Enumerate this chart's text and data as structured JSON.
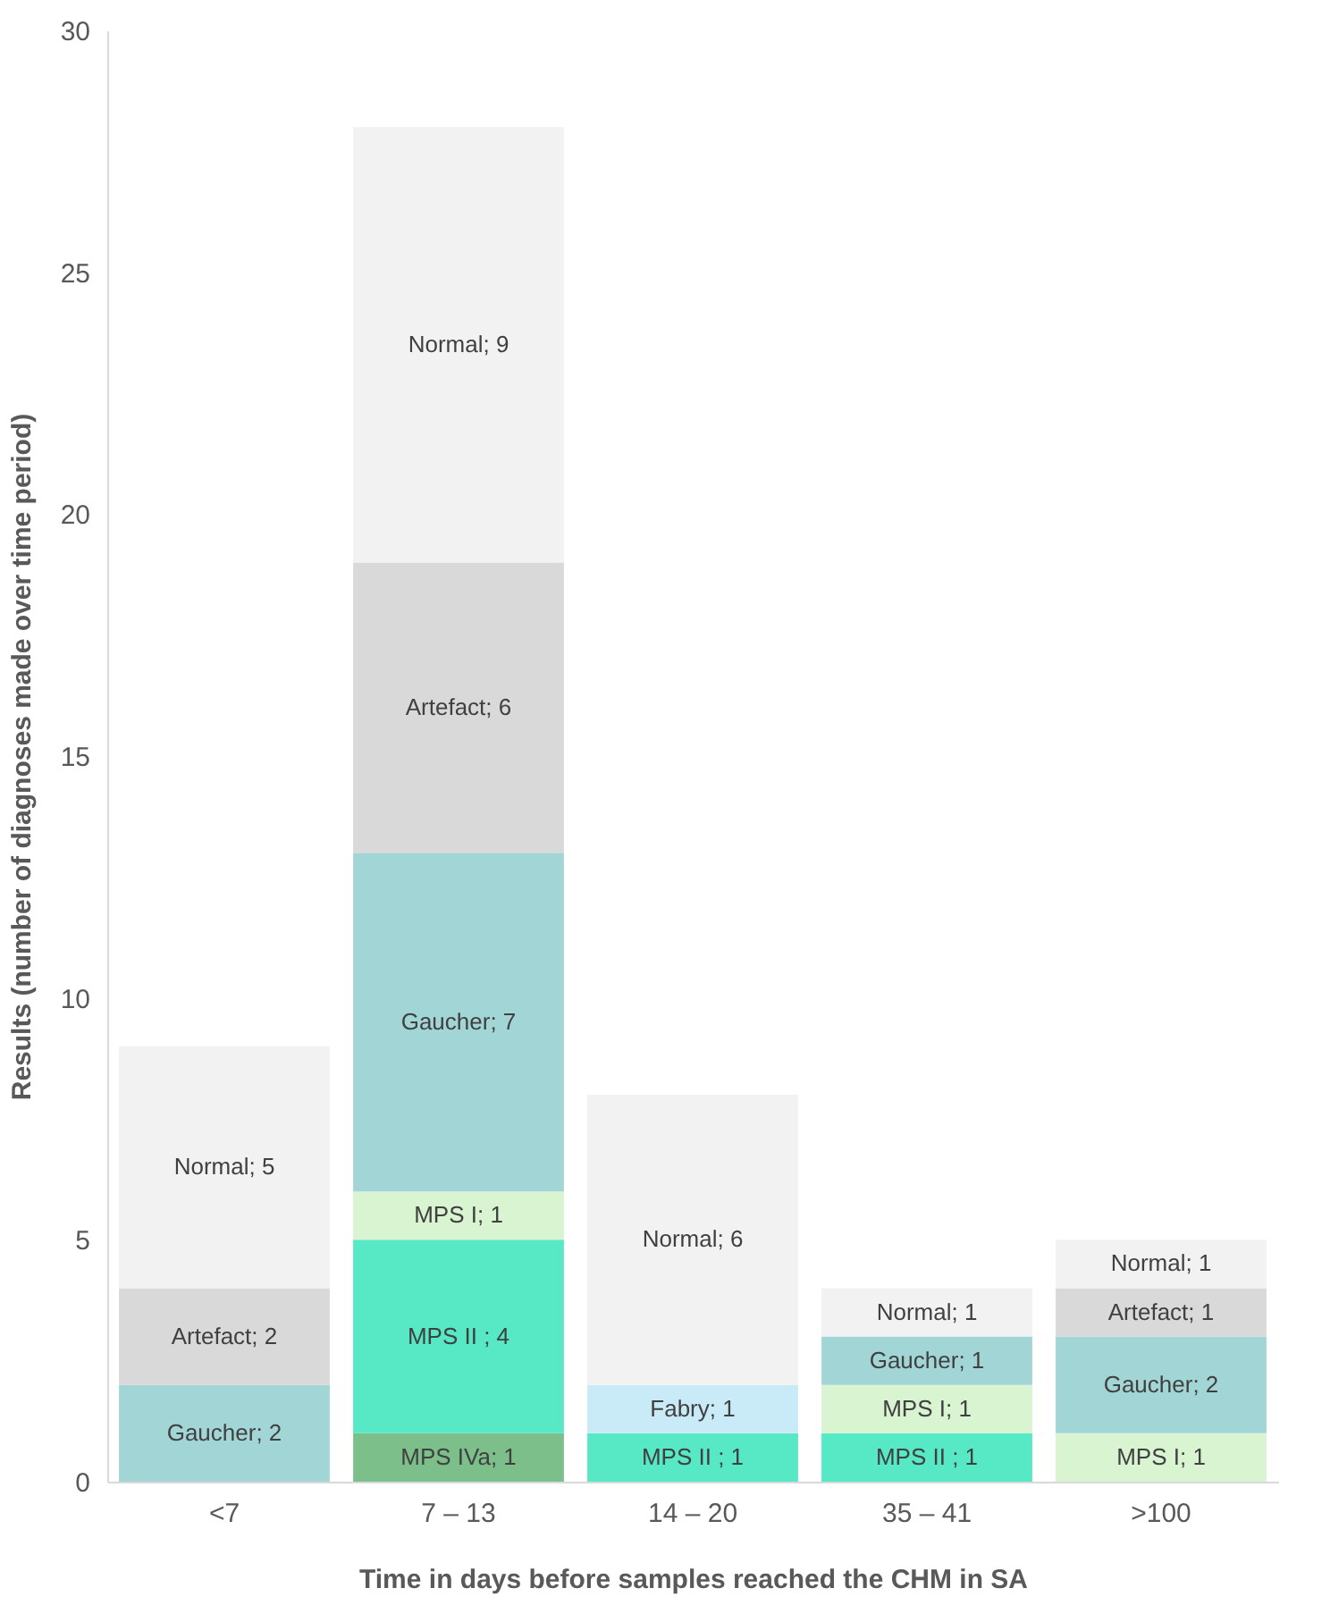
{
  "chart_data": {
    "type": "bar",
    "stacked": true,
    "xlabel": "Time in days before samples reached the CHM in SA",
    "ylabel": "Results (number of diagnoses made over time period)",
    "categories": [
      "<7",
      "7 – 13",
      "14 – 20",
      "35 – 41",
      ">100"
    ],
    "ylim": [
      0,
      30
    ],
    "yticks": [
      0,
      5,
      10,
      15,
      20,
      25,
      30
    ],
    "grid": false,
    "legend": false,
    "series": [
      {
        "color": "#7dbf8a",
        "values": [
          null,
          1,
          null,
          null,
          null
        ],
        "value_labels": [
          null,
          "MPS IVa; 1",
          null,
          null,
          null
        ]
      },
      {
        "color": "#57e8c6",
        "values": [
          null,
          4,
          1,
          1,
          null
        ],
        "value_labels": [
          null,
          "MPS II  ; 4",
          "MPS II  ; 1",
          "MPS II  ; 1",
          null
        ]
      },
      {
        "color": "#d9f4d0",
        "values": [
          null,
          1,
          null,
          1,
          1
        ],
        "value_labels": [
          null,
          "MPS I; 1",
          null,
          "MPS I; 1",
          "MPS I; 1"
        ]
      },
      {
        "color": "#c9ebf7",
        "values": [
          null,
          null,
          1,
          null,
          null
        ],
        "value_labels": [
          null,
          null,
          "Fabry; 1",
          null,
          null
        ]
      },
      {
        "color": "#a2d6d6",
        "values": [
          2,
          7,
          null,
          1,
          2
        ],
        "value_labels": [
          "Gaucher; 2",
          "Gaucher; 7",
          null,
          "Gaucher; 1",
          "Gaucher; 2"
        ]
      },
      {
        "color": "#d9d9d9",
        "values": [
          2,
          6,
          null,
          null,
          1
        ],
        "value_labels": [
          "Artefact; 2",
          "Artefact; 6",
          null,
          null,
          "Artefact; 1"
        ]
      },
      {
        "color": "#f2f2f2",
        "values": [
          5,
          9,
          6,
          1,
          1
        ],
        "value_labels": [
          "Normal; 5",
          "Normal; 9",
          "Normal; 6",
          "Normal; 1",
          "Normal; 1"
        ]
      }
    ]
  }
}
